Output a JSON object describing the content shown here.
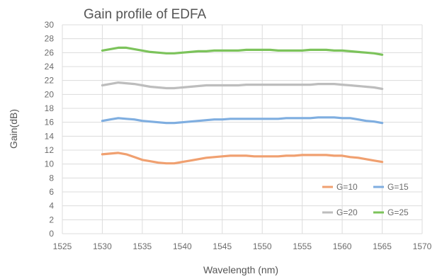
{
  "chart_data": {
    "type": "line",
    "title": "Gain profile of EDFA",
    "xlabel": "Wavelength (nm)",
    "ylabel": "Gain(dB)",
    "xlim": [
      1525,
      1570
    ],
    "ylim": [
      0,
      30
    ],
    "xticks": [
      1525,
      1530,
      1535,
      1540,
      1545,
      1550,
      1555,
      1560,
      1565,
      1570
    ],
    "yticks": [
      0,
      2,
      4,
      6,
      8,
      10,
      12,
      14,
      16,
      18,
      20,
      22,
      24,
      26,
      28,
      30
    ],
    "grid": true,
    "legend_position": "lower-right",
    "series": [
      {
        "name": "G=10",
        "color": "#F0A070",
        "x": [
          1530,
          1531,
          1532,
          1533,
          1534,
          1535,
          1536,
          1537,
          1538,
          1539,
          1540,
          1541,
          1542,
          1543,
          1544,
          1545,
          1546,
          1547,
          1548,
          1549,
          1550,
          1551,
          1552,
          1553,
          1554,
          1555,
          1556,
          1557,
          1558,
          1559,
          1560,
          1561,
          1562,
          1563,
          1564,
          1565
        ],
        "y": [
          11.4,
          11.5,
          11.6,
          11.4,
          11.0,
          10.6,
          10.4,
          10.2,
          10.1,
          10.1,
          10.3,
          10.5,
          10.7,
          10.9,
          11.0,
          11.1,
          11.2,
          11.2,
          11.2,
          11.1,
          11.1,
          11.1,
          11.1,
          11.2,
          11.2,
          11.3,
          11.3,
          11.3,
          11.3,
          11.2,
          11.2,
          11.0,
          10.9,
          10.7,
          10.5,
          10.3
        ]
      },
      {
        "name": "G=15",
        "color": "#7FAEE0",
        "x": [
          1530,
          1531,
          1532,
          1533,
          1534,
          1535,
          1536,
          1537,
          1538,
          1539,
          1540,
          1541,
          1542,
          1543,
          1544,
          1545,
          1546,
          1547,
          1548,
          1549,
          1550,
          1551,
          1552,
          1553,
          1554,
          1555,
          1556,
          1557,
          1558,
          1559,
          1560,
          1561,
          1562,
          1563,
          1564,
          1565
        ],
        "y": [
          16.2,
          16.4,
          16.6,
          16.5,
          16.4,
          16.2,
          16.1,
          16.0,
          15.9,
          15.9,
          16.0,
          16.1,
          16.2,
          16.3,
          16.4,
          16.4,
          16.5,
          16.5,
          16.5,
          16.5,
          16.5,
          16.5,
          16.5,
          16.6,
          16.6,
          16.6,
          16.6,
          16.7,
          16.7,
          16.7,
          16.6,
          16.6,
          16.4,
          16.2,
          16.1,
          15.9
        ]
      },
      {
        "name": "G=20",
        "color": "#BDBDBD",
        "x": [
          1530,
          1531,
          1532,
          1533,
          1534,
          1535,
          1536,
          1537,
          1538,
          1539,
          1540,
          1541,
          1542,
          1543,
          1544,
          1545,
          1546,
          1547,
          1548,
          1549,
          1550,
          1551,
          1552,
          1553,
          1554,
          1555,
          1556,
          1557,
          1558,
          1559,
          1560,
          1561,
          1562,
          1563,
          1564,
          1565
        ],
        "y": [
          21.3,
          21.5,
          21.7,
          21.6,
          21.5,
          21.3,
          21.1,
          21.0,
          20.9,
          20.9,
          21.0,
          21.1,
          21.2,
          21.3,
          21.3,
          21.3,
          21.3,
          21.3,
          21.4,
          21.4,
          21.4,
          21.4,
          21.4,
          21.4,
          21.4,
          21.4,
          21.4,
          21.5,
          21.5,
          21.5,
          21.4,
          21.3,
          21.2,
          21.1,
          21.0,
          20.8
        ]
      },
      {
        "name": "G=25",
        "color": "#7CC35B",
        "x": [
          1530,
          1531,
          1532,
          1533,
          1534,
          1535,
          1536,
          1537,
          1538,
          1539,
          1540,
          1541,
          1542,
          1543,
          1544,
          1545,
          1546,
          1547,
          1548,
          1549,
          1550,
          1551,
          1552,
          1553,
          1554,
          1555,
          1556,
          1557,
          1558,
          1559,
          1560,
          1561,
          1562,
          1563,
          1564,
          1565
        ],
        "y": [
          26.3,
          26.5,
          26.7,
          26.7,
          26.5,
          26.3,
          26.1,
          26.0,
          25.9,
          25.9,
          26.0,
          26.1,
          26.2,
          26.2,
          26.3,
          26.3,
          26.3,
          26.3,
          26.4,
          26.4,
          26.4,
          26.4,
          26.3,
          26.3,
          26.3,
          26.3,
          26.4,
          26.4,
          26.4,
          26.3,
          26.3,
          26.2,
          26.1,
          26.0,
          25.9,
          25.7
        ]
      }
    ]
  }
}
